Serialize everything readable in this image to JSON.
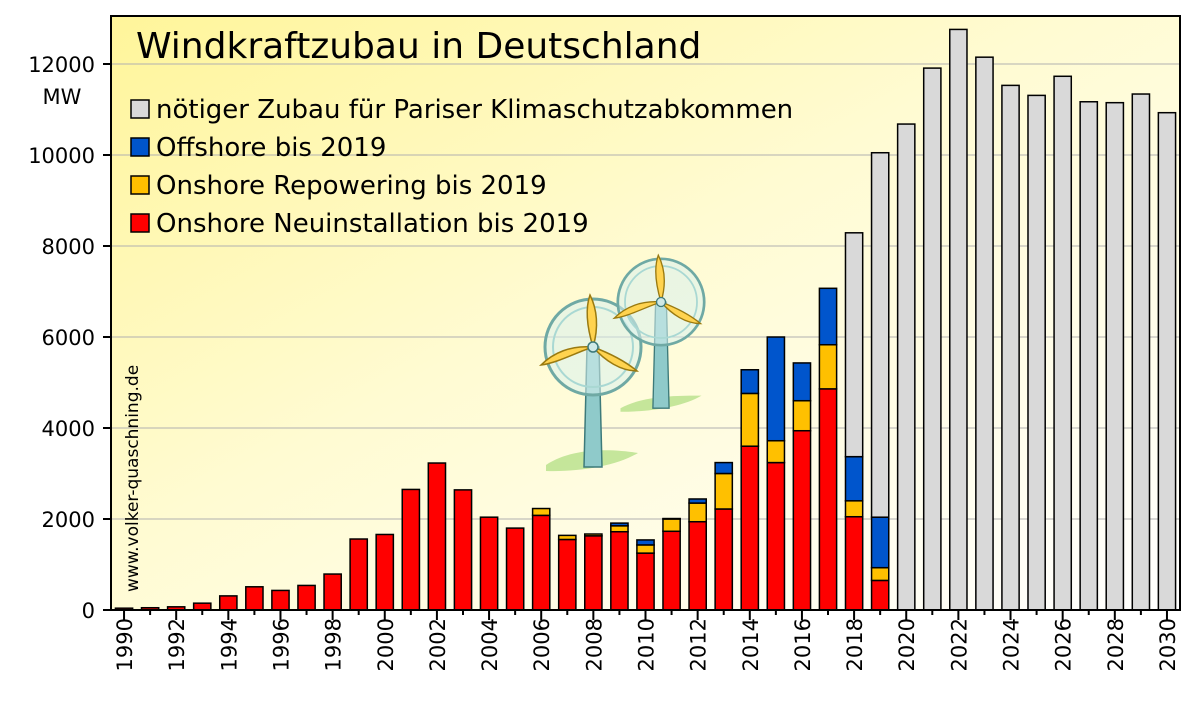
{
  "chart_data": {
    "type": "bar",
    "stacked": true,
    "title": "Windkraftzubau in Deutschland",
    "ylabel": "MW",
    "ylim": [
      0,
      13000
    ],
    "yticks": [
      0,
      2000,
      4000,
      6000,
      8000,
      10000,
      12000
    ],
    "xtick_labels": [
      "1990",
      "1992",
      "1994",
      "1996",
      "1998",
      "2000",
      "2002",
      "2004",
      "2006",
      "2008",
      "2010",
      "2012",
      "2014",
      "2016",
      "2018",
      "2020",
      "2022",
      "2024",
      "2026",
      "2028",
      "2030"
    ],
    "categories": [
      "1990",
      "1991",
      "1992",
      "1993",
      "1994",
      "1995",
      "1996",
      "1997",
      "1998",
      "1999",
      "2000",
      "2001",
      "2002",
      "2003",
      "2004",
      "2005",
      "2006",
      "2007",
      "2008",
      "2009",
      "2010",
      "2011",
      "2012",
      "2013",
      "2014",
      "2015",
      "2016",
      "2017",
      "2018",
      "2019",
      "2020",
      "2021",
      "2022",
      "2023",
      "2024",
      "2025",
      "2026",
      "2027",
      "2028",
      "2029",
      "2030"
    ],
    "series": [
      {
        "name": "Onshore Neuinstallation bis 2019",
        "color": "#ff0000",
        "values": [
          40,
          50,
          70,
          150,
          310,
          510,
          430,
          540,
          790,
          1560,
          1660,
          2650,
          3230,
          2640,
          2040,
          1800,
          2080,
          1550,
          1630,
          1720,
          1250,
          1730,
          1940,
          2220,
          3600,
          3240,
          3940,
          4860,
          2050,
          650,
          0,
          0,
          0,
          0,
          0,
          0,
          0,
          0,
          0,
          0,
          0
        ]
      },
      {
        "name": "Onshore Repowering bis 2019",
        "color": "#ffc000",
        "values": [
          0,
          0,
          0,
          0,
          0,
          0,
          0,
          0,
          0,
          0,
          0,
          0,
          0,
          0,
          0,
          0,
          150,
          90,
          40,
          130,
          180,
          270,
          410,
          780,
          1160,
          480,
          660,
          970,
          350,
          280,
          0,
          0,
          0,
          0,
          0,
          0,
          0,
          0,
          0,
          0,
          0
        ]
      },
      {
        "name": "Offshore bis 2019",
        "color": "#0055cc",
        "values": [
          0,
          0,
          0,
          0,
          0,
          0,
          0,
          0,
          0,
          0,
          0,
          0,
          0,
          0,
          0,
          0,
          0,
          0,
          0,
          60,
          110,
          10,
          90,
          240,
          520,
          2280,
          830,
          1240,
          970,
          1110,
          0,
          0,
          0,
          0,
          0,
          0,
          0,
          0,
          0,
          0,
          0
        ]
      },
      {
        "name": "nötiger Zubau für Pariser Klimaschutzabkommen",
        "color": "#d9d9d9",
        "values": [
          0,
          0,
          0,
          0,
          0,
          0,
          0,
          0,
          0,
          0,
          0,
          0,
          0,
          0,
          0,
          0,
          0,
          0,
          0,
          0,
          0,
          0,
          0,
          0,
          0,
          0,
          0,
          0,
          4920,
          8010,
          10680,
          11910,
          12760,
          12150,
          11530,
          11310,
          11730,
          11170,
          11150,
          11340,
          10930
        ]
      }
    ],
    "legend": {
      "placement": "top-left",
      "order": [
        "nötiger Zubau für Pariser Klimaschutzabkommen",
        "Offshore bis 2019",
        "Onshore Repowering bis 2019",
        "Onshore Neuinstallation bis 2019"
      ]
    },
    "watermark": "www.volker-quaschning.de",
    "grid": true
  }
}
